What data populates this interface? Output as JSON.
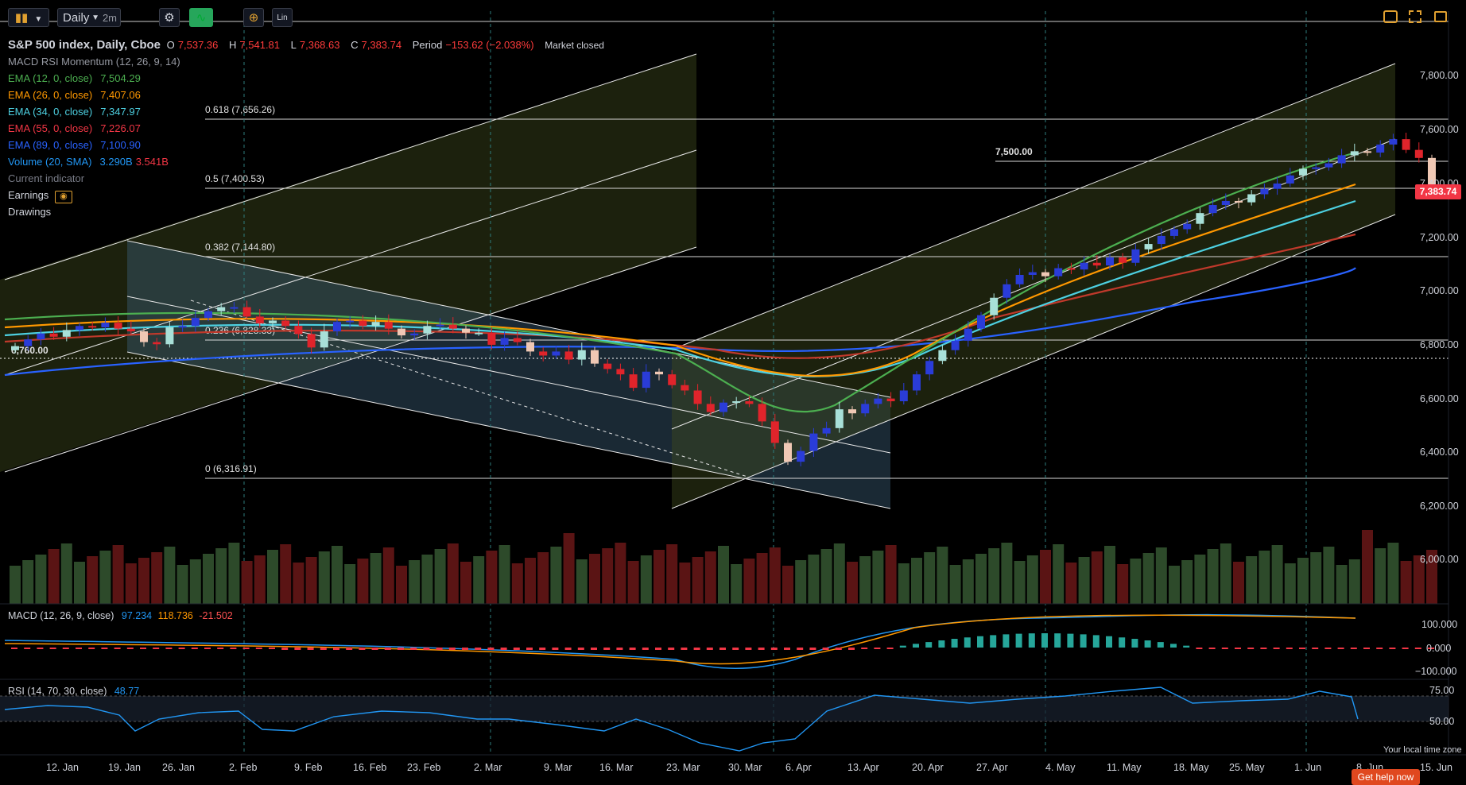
{
  "toolbar": {
    "chart_type_icon": "candles-icon",
    "interval": "Daily",
    "interval_alt": "2m",
    "settings_icon": "gear-icon",
    "indicator_icon": "indicator-icon",
    "crosshair_icon": "crosshair-icon",
    "scale_label": "Lin",
    "right_icons": [
      "camera-icon",
      "fullscreen-icon",
      "snapshot-icon"
    ]
  },
  "header": {
    "symbol": "S&P 500 index, Daily, Cboe",
    "o_label": "O",
    "o_value": "7,537.36",
    "h_label": "H",
    "h_value": "7,541.81",
    "l_label": "L",
    "l_value": "7,368.63",
    "c_label": "C",
    "c_value": "7,383.74",
    "period_label": "Period",
    "period_value": "−153.62 (−2.038%)",
    "status": "Market closed"
  },
  "indicators": [
    {
      "name": "MACD RSI Momentum (12, 26, 9, 14)",
      "value": "",
      "color": "#9598a1"
    },
    {
      "name": "EMA (12, 0, close)",
      "value": "7,504.29",
      "color": "#4caf50"
    },
    {
      "name": "EMA (26, 0, close)",
      "value": "7,407.06",
      "color": "#ff9800"
    },
    {
      "name": "EMA (34, 0, close)",
      "value": "7,347.97",
      "color": "#4dd0e1"
    },
    {
      "name": "EMA (55, 0, close)",
      "value": "7,226.07",
      "color": "#f23645"
    },
    {
      "name": "EMA (89, 0, close)",
      "value": "7,100.90",
      "color": "#2962ff"
    },
    {
      "name": "Volume (20, SMA)",
      "value": "3.290B",
      "value2": "3.541B",
      "color": "#2196f3"
    }
  ],
  "legend_extra": {
    "current_indicator": "Current indicator",
    "earnings": "Earnings",
    "earnings_icon": "eye-icon",
    "drawings": "Drawings"
  },
  "price_axis": [
    "7,800.00",
    "7,600.00",
    "7,400.00",
    "7,200.00",
    "7,000.00",
    "6,800.00",
    "6,600.00",
    "6,400.00",
    "6,200.00",
    "6,000.00"
  ],
  "last_price_tag": "7,383.74",
  "fib_levels": [
    {
      "label": "0.618 (7,656.26)"
    },
    {
      "label": "0.5 (7,400.53)"
    },
    {
      "label": "0.382 (7,144.80)"
    },
    {
      "label": "0.236 (6,828.33)"
    },
    {
      "label": "0 (6,316.91)"
    }
  ],
  "hline_labels": {
    "h7500": "7,500.00",
    "h6760": "6,760.00"
  },
  "macd": {
    "label": "MACD (12, 26, 9, close)",
    "v1": "97.234",
    "v2": "118.736",
    "v3": "-21.502",
    "axis": [
      "100.000",
      "0.000",
      "−100.000"
    ]
  },
  "rsi": {
    "label": "RSI (14, 70, 30, close)",
    "value": "48.77",
    "axis": [
      "75.00",
      "50.00"
    ]
  },
  "time_axis": [
    "12. Jan",
    "19. Jan",
    "26. Jan",
    "2. Feb",
    "9. Feb",
    "16. Feb",
    "23. Feb",
    "2. Mar",
    "9. Mar",
    "16. Mar",
    "23. Mar",
    "30. Mar",
    "6. Apr",
    "13. Apr",
    "20. Apr",
    "27. Apr",
    "4. May",
    "11. May",
    "18. May",
    "25. May",
    "1. Jun",
    "8. Jun",
    "15. Jun"
  ],
  "footer": {
    "local_time": "Your local time zone",
    "help": "Get help now"
  },
  "colors": {
    "up": "#2a3cd8",
    "down": "#e0242b",
    "up_alt": "#a8e0d8",
    "down_alt": "#f0c8b4",
    "background": "#000000"
  },
  "chart_data": {
    "type": "candlestick",
    "closes": [
      6805,
      6830,
      6852,
      6840,
      6865,
      6880,
      6875,
      6892,
      6870,
      6860,
      6820,
      6812,
      6875,
      6880,
      6910,
      6935,
      6950,
      6950,
      6915,
      6890,
      6900,
      6880,
      6850,
      6800,
      6860,
      6895,
      6900,
      6880,
      6895,
      6870,
      6845,
      6852,
      6880,
      6885,
      6870,
      6855,
      6855,
      6810,
      6835,
      6820,
      6785,
      6770,
      6785,
      6755,
      6790,
      6740,
      6720,
      6700,
      6650,
      6710,
      6700,
      6660,
      6640,
      6590,
      6560,
      6595,
      6600,
      6590,
      6525,
      6445,
      6375,
      6415,
      6480,
      6500,
      6570,
      6555,
      6590,
      6610,
      6600,
      6640,
      6700,
      6750,
      6790,
      6825,
      6870,
      6920,
      6985,
      7035,
      7070,
      7080,
      7065,
      7095,
      7090,
      7115,
      7105,
      7135,
      7115,
      7165,
      7185,
      7215,
      7240,
      7260,
      7300,
      7330,
      7345,
      7340,
      7370,
      7390,
      7410,
      7440,
      7465,
      7470,
      7485,
      7515,
      7530,
      7525,
      7555,
      7575,
      7535,
      7505,
      7383.74
    ]
  }
}
